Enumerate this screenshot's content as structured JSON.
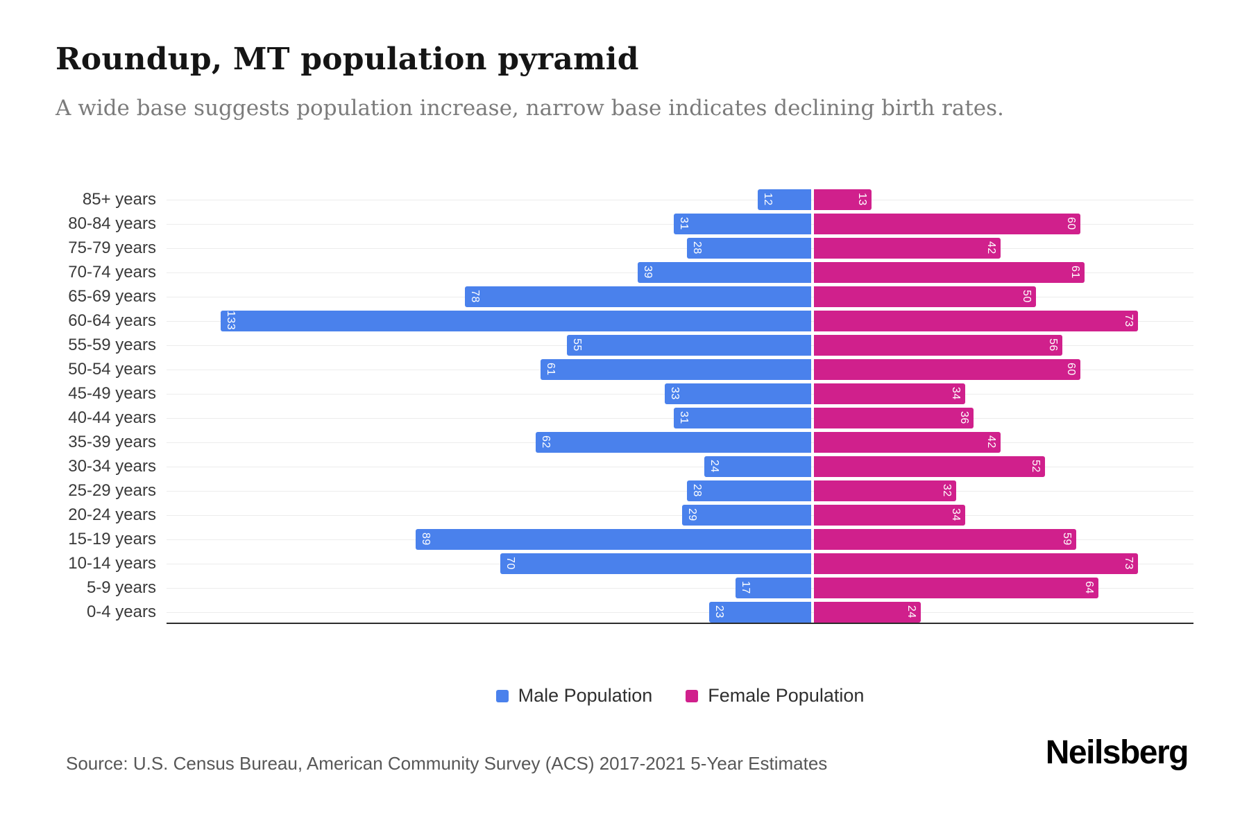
{
  "title": "Roundup, MT population pyramid",
  "subtitle": "A wide base suggests population increase, narrow base indicates declining birth rates.",
  "source": "Source: U.S. Census Bureau, American Community Survey (ACS) 2017-2021 5-Year Estimates",
  "logo": "Neilsberg",
  "legend": {
    "male_label": "Male Population",
    "female_label": "Female Population"
  },
  "colors": {
    "male": "#4a81ec",
    "female": "#d0208c"
  },
  "chart_data": {
    "type": "bar",
    "subtype": "population-pyramid",
    "orientation": "horizontal",
    "title": "Roundup, MT population pyramid",
    "xlabel": "",
    "ylabel": "",
    "grid": true,
    "legend_position": "bottom",
    "x_axis_tick_labels_visible": false,
    "value_labels_shown": true,
    "categories": [
      "85+ years",
      "80-84 years",
      "75-79 years",
      "70-74 years",
      "65-69 years",
      "60-64 years",
      "55-59 years",
      "50-54 years",
      "45-49 years",
      "40-44 years",
      "35-39 years",
      "30-34 years",
      "25-29 years",
      "20-24 years",
      "15-19 years",
      "10-14 years",
      "5-9 years",
      "0-4 years"
    ],
    "series": [
      {
        "name": "Male Population",
        "side": "left",
        "color": "#4a81ec",
        "values": [
          12,
          31,
          28,
          39,
          78,
          133,
          55,
          61,
          33,
          31,
          62,
          24,
          28,
          29,
          89,
          70,
          17,
          23
        ]
      },
      {
        "name": "Female Population",
        "side": "right",
        "color": "#d0208c",
        "values": [
          13,
          60,
          42,
          61,
          50,
          73,
          56,
          60,
          34,
          36,
          42,
          52,
          32,
          34,
          59,
          73,
          64,
          24
        ]
      }
    ]
  }
}
